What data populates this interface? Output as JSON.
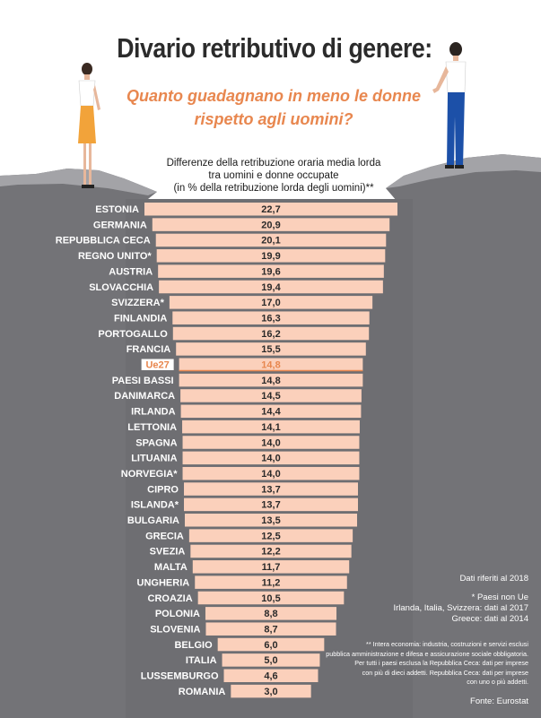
{
  "title": "Divario retributivo di genere:",
  "subtitle_lines": [
    "Quanto guadagnano in meno le donne",
    "rispetto agli uomini?"
  ],
  "chart_data": {
    "type": "bar",
    "orientation": "horizontal",
    "title": "Differenze della retribuzione oraria media lorda tra uomini e donne occupate (in % della retribuzione lorda degli uomini)**",
    "title_lines": [
      "Differenze della retribuzione oraria media lorda",
      "tra uomini e donne occupate",
      "(in % della retribuzione lorda degli uomini)**"
    ],
    "categories": [
      "ESTONIA",
      "GERMANIA",
      "REPUBBLICA CECA",
      "REGNO UNITO*",
      "AUSTRIA",
      "SLOVACCHIA",
      "SVIZZERA*",
      "FINLANDIA",
      "PORTOGALLO",
      "FRANCIA",
      "Ue27",
      "PAESI BASSI",
      "DANIMARCA",
      "IRLANDA",
      "LETTONIA",
      "SPAGNA",
      "LITUANIA",
      "NORVEGIA*",
      "CIPRO",
      "ISLANDA*",
      "BULGARIA",
      "GRECIA",
      "SVEZIA",
      "MALTA",
      "UNGHERIA",
      "CROAZIA",
      "POLONIA",
      "SLOVENIA",
      "BELGIO",
      "ITALIA",
      "LUSSEMBURGO",
      "ROMANIA"
    ],
    "values": [
      22.7,
      20.9,
      20.1,
      19.9,
      19.6,
      19.4,
      17.0,
      16.3,
      16.2,
      15.5,
      14.8,
      14.8,
      14.5,
      14.4,
      14.1,
      14.0,
      14.0,
      14.0,
      13.7,
      13.7,
      13.5,
      12.5,
      12.2,
      11.7,
      11.2,
      10.5,
      8.8,
      8.7,
      6.0,
      5.0,
      4.6,
      3.0
    ],
    "value_labels": [
      "22,7",
      "20,9",
      "20,1",
      "19,9",
      "19,6",
      "19,4",
      "17,0",
      "16,3",
      "16,2",
      "15,5",
      "14,8",
      "14,8",
      "14,5",
      "14,4",
      "14,1",
      "14,0",
      "14,0",
      "14,0",
      "13,7",
      "13,7",
      "13,5",
      "12,5",
      "12,2",
      "11,7",
      "11,2",
      "10,5",
      "8,8",
      "8,7",
      "6,0",
      "5,0",
      "4,6",
      "3,0"
    ],
    "highlight_category": "Ue27",
    "xlim": [
      0,
      22.7
    ],
    "colors": {
      "bar": "#fbd0bb",
      "highlight": "#e8874f",
      "bar_text": "#2a2a2a",
      "label_text": "#ffffff",
      "background": "#6e6e72"
    }
  },
  "notes": {
    "year": "Dati riferiti al 2018",
    "non_ue": [
      "* Paesi non Ue",
      "Irlanda, Italia, Svizzera: dati al 2017",
      "Greece: dati al 2014"
    ],
    "footnote": [
      "** Intera economia: industria, costruzioni e servizi esclusi",
      "pubblica amministrazione e difesa e assicurazione sociale obbligatoria.",
      "Per tutti i paesi esclusa la Repubblica Ceca: dati per imprese",
      "con più di dieci addetti. Repubblica Ceca: dati per imprese",
      "con uno o più addetti."
    ],
    "source": "Fonte: Eurostat"
  }
}
